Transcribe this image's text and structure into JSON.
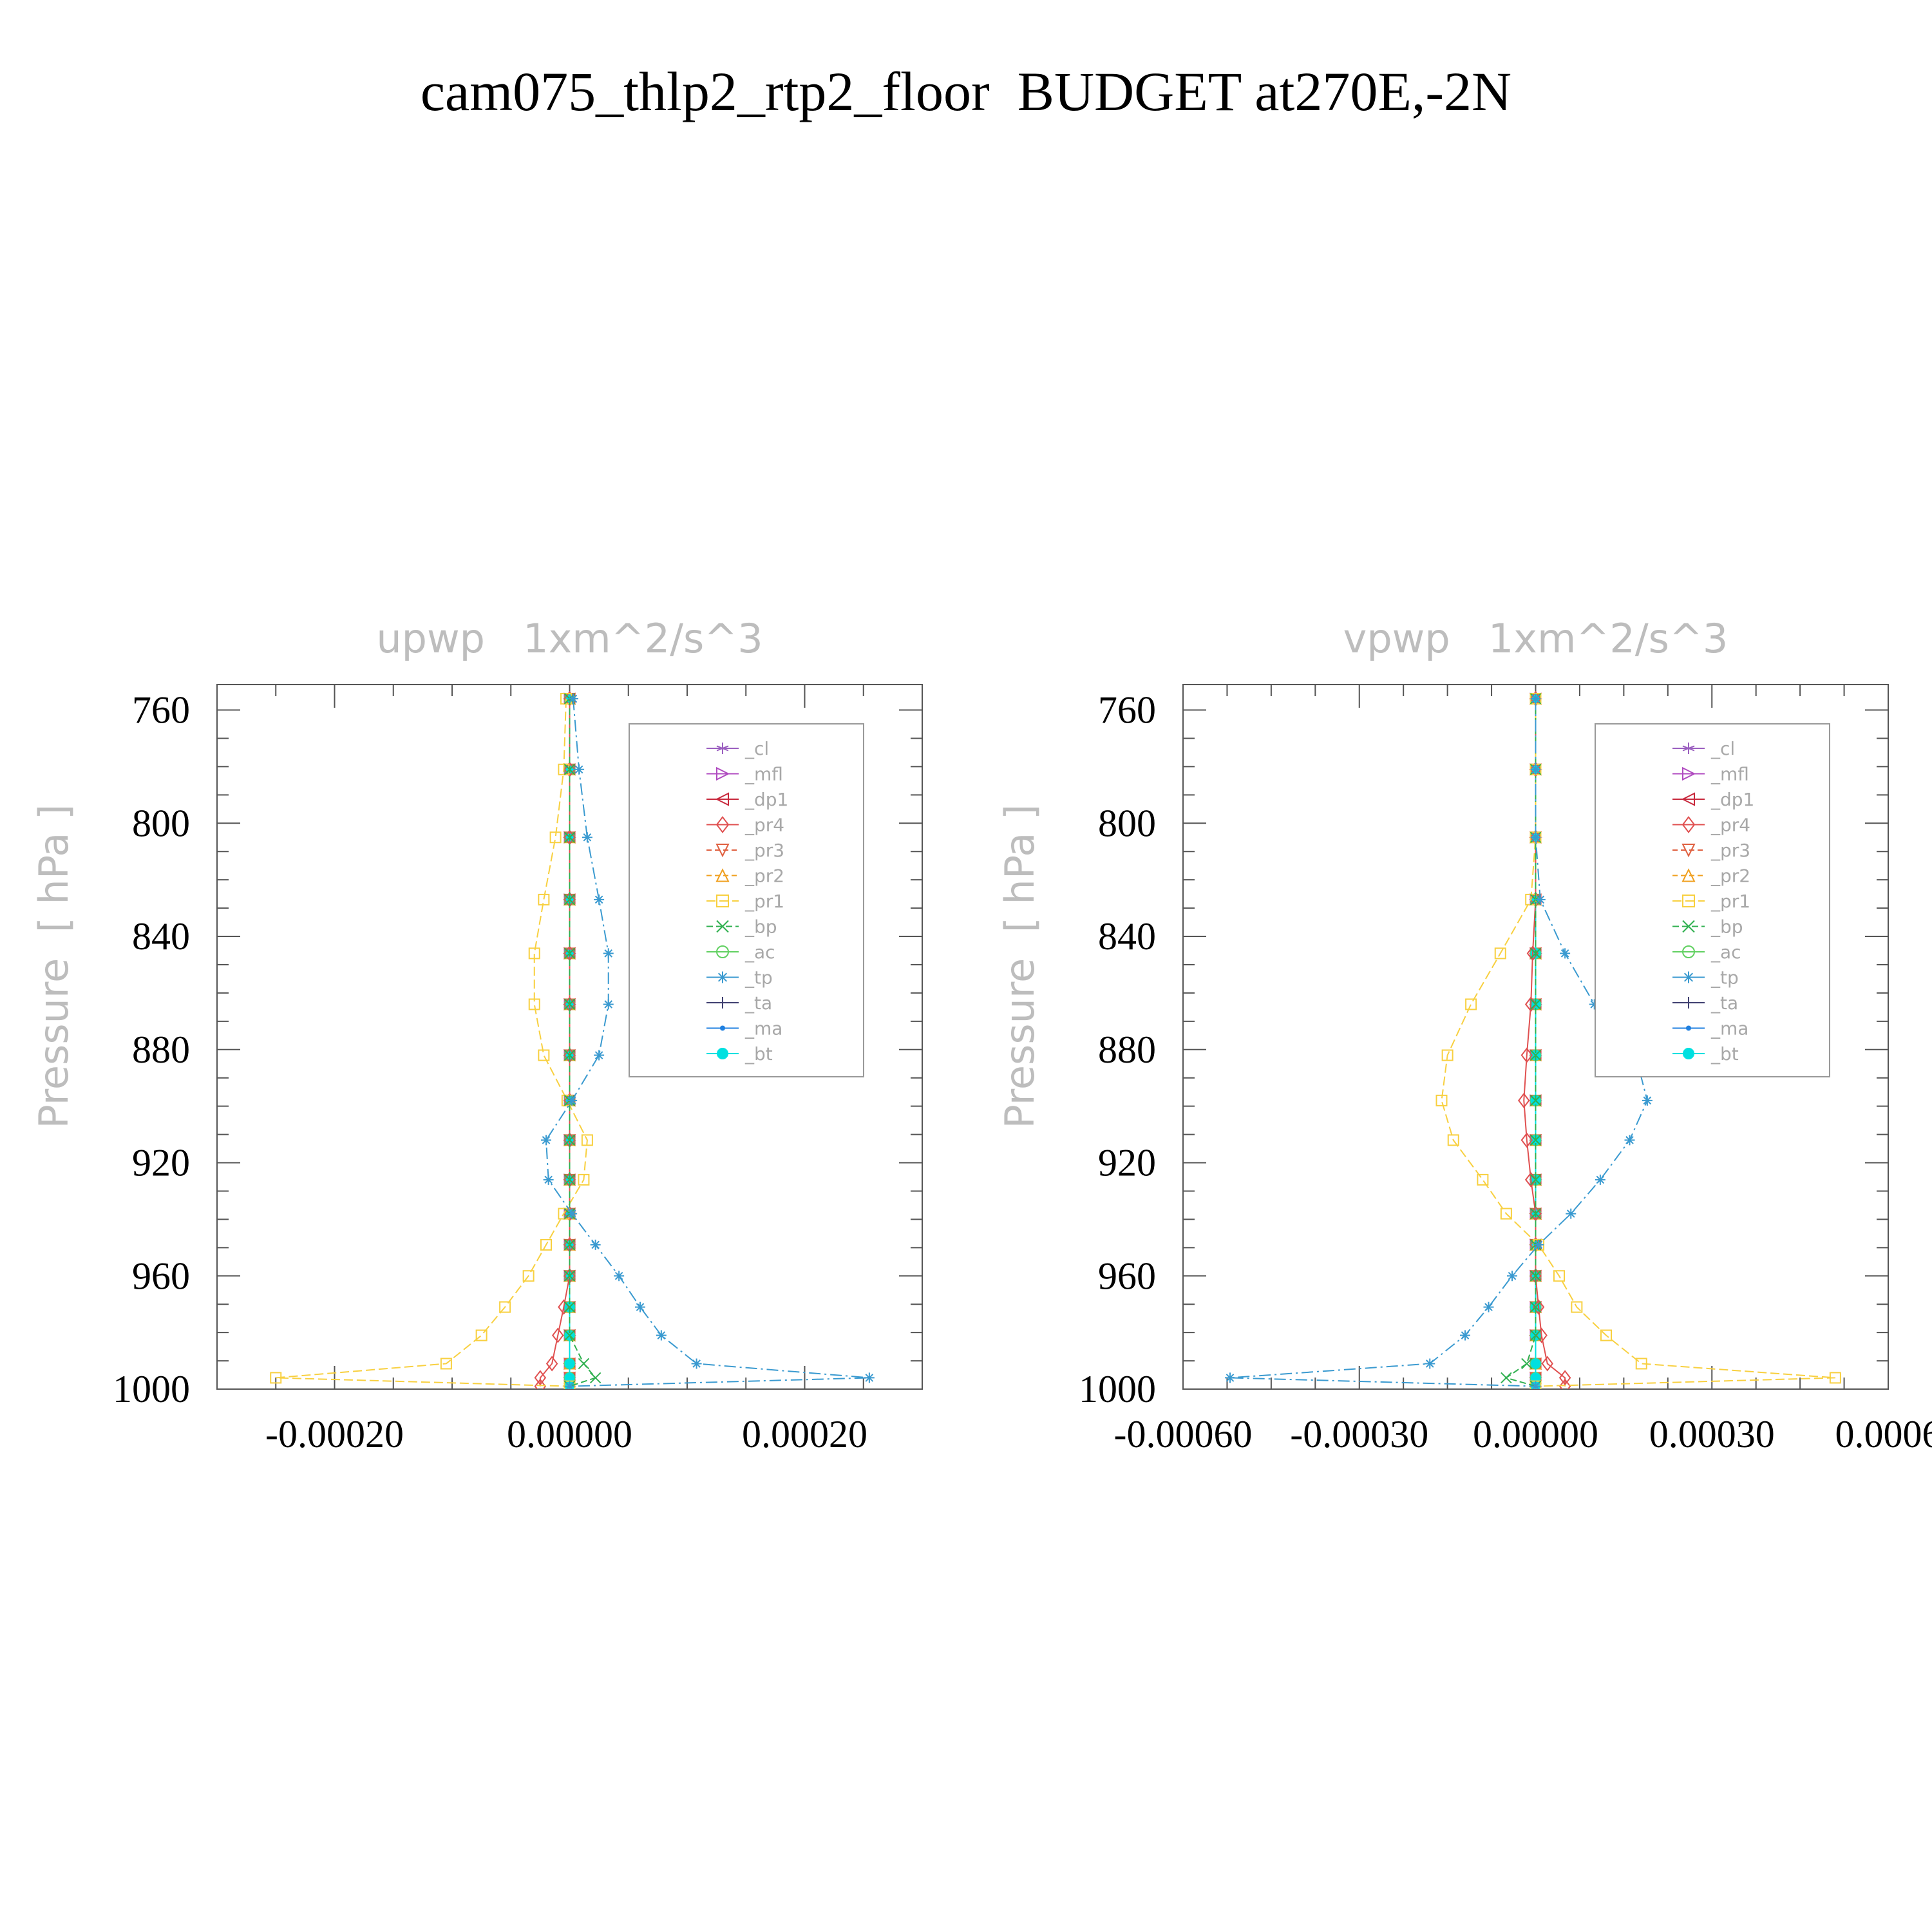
{
  "title": "cam075_thlp2_rtp2_floor  BUDGET at270E,-2N",
  "colors": {
    "_cl": "#9b5fc0",
    "_mfl": "#b04bc0",
    "_dp1": "#c8283c",
    "_pr4": "#e05050",
    "_pr3": "#e06040",
    "_pr2": "#f0a020",
    "_pr1": "#f8d040",
    "_bp": "#30b050",
    "_ac": "#60d060",
    "_tp": "#3a9ad0",
    "_ta": "#404070",
    "_ma": "#2080e0",
    "_bt": "#00e0e0"
  },
  "chart_data": [
    {
      "type": "line",
      "title": "upwp   1xm^2/s^3",
      "ylabel": "Pressure  [ hPa ]",
      "xlabel": "",
      "xlim": [
        -0.0003,
        0.0003
      ],
      "ylim": [
        1000,
        751
      ],
      "yticks": [
        760,
        800,
        840,
        880,
        920,
        960,
        1000
      ],
      "ytick_labels": [
        "760",
        "800",
        "840",
        "880",
        "920",
        "960",
        "1000"
      ],
      "xticks": [
        -0.0002,
        0.0,
        0.0002
      ],
      "xtick_labels": [
        "-0.00020",
        "0.00000",
        "0.00020"
      ],
      "legend_position": "top-right",
      "y": [
        756,
        781,
        805,
        827,
        846,
        864,
        882,
        898,
        912,
        926,
        938,
        949,
        960,
        971,
        981,
        991,
        996,
        999
      ],
      "series": [
        {
          "name": "_cl",
          "values": [
            0,
            0,
            0,
            0,
            0,
            0,
            0,
            0,
            0,
            0,
            0,
            0,
            0,
            0,
            0,
            0,
            0,
            0
          ]
        },
        {
          "name": "_mfl",
          "values": [
            0,
            0,
            0,
            0,
            0,
            0,
            0,
            0,
            0,
            0,
            0,
            0,
            0,
            0,
            0,
            0,
            0,
            0
          ]
        },
        {
          "name": "_dp1",
          "values": [
            0,
            0,
            0,
            0,
            0,
            0,
            0,
            0,
            0,
            0,
            0,
            0,
            0,
            0,
            0,
            0,
            0,
            0
          ]
        },
        {
          "name": "_pr4",
          "values": [
            0,
            0,
            0,
            0,
            0,
            0,
            0,
            0,
            0,
            0,
            0,
            0,
            0,
            -5e-06,
            -1e-05,
            -1.5e-05,
            -2.5e-05,
            -2.5e-05
          ]
        },
        {
          "name": "_pr3",
          "values": [
            0,
            0,
            0,
            0,
            0,
            0,
            0,
            0,
            0,
            0,
            0,
            0,
            0,
            0,
            0,
            0,
            0,
            0
          ]
        },
        {
          "name": "_pr2",
          "values": [
            0,
            0,
            0,
            0,
            0,
            0,
            0,
            0,
            0,
            0,
            0,
            0,
            0,
            0,
            0,
            0,
            0,
            0
          ]
        },
        {
          "name": "_pr1",
          "values": [
            -3e-06,
            -5e-06,
            -1.2e-05,
            -2.2e-05,
            -3e-05,
            -3e-05,
            -2.2e-05,
            -2e-06,
            1.5e-05,
            1.2e-05,
            -5e-06,
            -2e-05,
            -3.5e-05,
            -5.5e-05,
            -7.5e-05,
            -0.000105,
            -0.00025,
            0
          ]
        },
        {
          "name": "_bp",
          "values": [
            0,
            0,
            0,
            0,
            0,
            0,
            0,
            0,
            0,
            0,
            0,
            0,
            0,
            0,
            0,
            1.2e-05,
            2.2e-05,
            0
          ]
        },
        {
          "name": "_ac",
          "values": [
            0,
            0,
            0,
            0,
            0,
            0,
            0,
            0,
            0,
            0,
            0,
            0,
            0,
            0,
            0,
            0,
            0,
            0
          ]
        },
        {
          "name": "_tp",
          "values": [
            3e-06,
            8e-06,
            1.5e-05,
            2.5e-05,
            3.3e-05,
            3.3e-05,
            2.5e-05,
            2e-06,
            -2e-05,
            -1.8e-05,
            2e-06,
            2.2e-05,
            4.2e-05,
            6e-05,
            7.8e-05,
            0.000108,
            0.000255,
            0
          ]
        },
        {
          "name": "_ta",
          "values": [
            0,
            0,
            0,
            0,
            0,
            0,
            0,
            0,
            0,
            0,
            0,
            0,
            0,
            0,
            0,
            0,
            0,
            0
          ]
        },
        {
          "name": "_ma",
          "values": [
            0,
            0,
            0,
            0,
            0,
            0,
            0,
            0,
            0,
            0,
            0,
            0,
            0,
            0,
            0,
            0,
            0,
            0
          ]
        },
        {
          "name": "_bt",
          "values": [
            0,
            0,
            0,
            0,
            0,
            0,
            0,
            0,
            0,
            0,
            0,
            0,
            0,
            0,
            0,
            0,
            0,
            0
          ]
        }
      ]
    },
    {
      "type": "line",
      "title": "vpwp   1xm^2/s^3",
      "ylabel": "Pressure  [ hPa ]",
      "xlabel": "",
      "xlim": [
        -0.0006,
        0.0006
      ],
      "ylim": [
        1000,
        751
      ],
      "yticks": [
        760,
        800,
        840,
        880,
        920,
        960,
        1000
      ],
      "ytick_labels": [
        "760",
        "800",
        "840",
        "880",
        "920",
        "960",
        "1000"
      ],
      "xticks": [
        -0.0006,
        -0.0003,
        0.0,
        0.0003,
        0.0006
      ],
      "xtick_labels": [
        "-0.00060",
        "-0.00030",
        "0.00000",
        "0.00030",
        "0.0006"
      ],
      "legend_position": "top-right",
      "y": [
        756,
        781,
        805,
        827,
        846,
        864,
        882,
        898,
        912,
        926,
        938,
        949,
        960,
        971,
        981,
        991,
        996,
        999
      ],
      "series": [
        {
          "name": "_cl",
          "values": [
            0,
            0,
            0,
            0,
            0,
            0,
            0,
            0,
            0,
            0,
            0,
            0,
            0,
            0,
            0,
            0,
            0,
            0
          ]
        },
        {
          "name": "_mfl",
          "values": [
            0,
            0,
            0,
            0,
            0,
            0,
            0,
            0,
            0,
            0,
            0,
            0,
            0,
            0,
            0,
            0,
            0,
            0
          ]
        },
        {
          "name": "_dp1",
          "values": [
            0,
            0,
            0,
            0,
            0,
            0,
            0,
            0,
            0,
            0,
            0,
            0,
            0,
            0,
            0,
            0,
            0,
            0
          ]
        },
        {
          "name": "_pr4",
          "values": [
            0,
            0,
            0,
            0,
            -5e-06,
            -8e-06,
            -1.5e-05,
            -2e-05,
            -1.5e-05,
            -8e-06,
            0,
            0,
            0,
            5e-06,
            1e-05,
            2e-05,
            5e-05,
            5e-05
          ]
        },
        {
          "name": "_pr3",
          "values": [
            0,
            0,
            0,
            0,
            0,
            0,
            0,
            0,
            0,
            0,
            0,
            0,
            0,
            0,
            0,
            0,
            0,
            0
          ]
        },
        {
          "name": "_pr2",
          "values": [
            0,
            0,
            0,
            0,
            0,
            0,
            0,
            0,
            0,
            0,
            0,
            0,
            0,
            0,
            0,
            0,
            0,
            0
          ]
        },
        {
          "name": "_pr1",
          "values": [
            0,
            0,
            0,
            -8e-06,
            -6e-05,
            -0.00011,
            -0.00015,
            -0.00016,
            -0.00014,
            -9e-05,
            -5e-05,
            5e-06,
            4e-05,
            7e-05,
            0.00012,
            0.00018,
            0.00051,
            0
          ]
        },
        {
          "name": "_bp",
          "values": [
            0,
            0,
            0,
            0,
            0,
            0,
            0,
            0,
            0,
            0,
            0,
            0,
            0,
            0,
            0,
            -1.5e-05,
            -5e-05,
            0
          ]
        },
        {
          "name": "_ac",
          "values": [
            0,
            0,
            0,
            0,
            0,
            0,
            0,
            0,
            0,
            0,
            0,
            0,
            0,
            0,
            0,
            0,
            0,
            0
          ]
        },
        {
          "name": "_tp",
          "values": [
            0,
            0,
            0,
            8e-06,
            5e-05,
            0.0001,
            0.00017,
            0.00019,
            0.00016,
            0.00011,
            6e-05,
            5e-06,
            -4e-05,
            -8e-05,
            -0.00012,
            -0.00018,
            -0.00052,
            0
          ]
        },
        {
          "name": "_ta",
          "values": [
            0,
            0,
            0,
            0,
            0,
            0,
            0,
            0,
            0,
            0,
            0,
            0,
            0,
            0,
            0,
            0,
            0,
            0
          ]
        },
        {
          "name": "_ma",
          "values": [
            0,
            0,
            0,
            0,
            0,
            0,
            0,
            0,
            0,
            0,
            0,
            0,
            0,
            0,
            0,
            0,
            0,
            0
          ]
        },
        {
          "name": "_bt",
          "values": [
            0,
            0,
            0,
            0,
            0,
            0,
            0,
            0,
            0,
            0,
            0,
            0,
            0,
            0,
            0,
            0,
            0,
            0
          ]
        }
      ]
    }
  ]
}
